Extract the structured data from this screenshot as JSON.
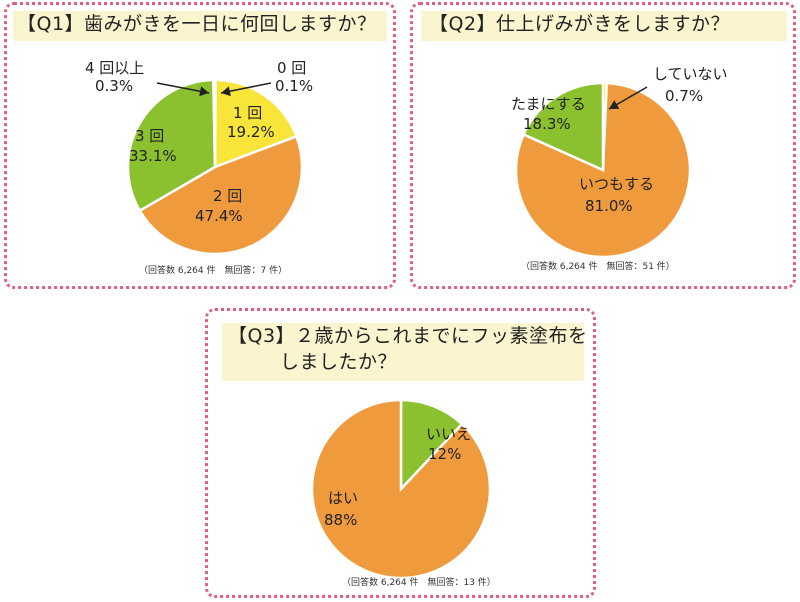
{
  "chart_data": [
    {
      "type": "pie",
      "title": "【Q1】歯みがきを一日に何回しますか？",
      "note": "（回答数 6,264 件　無回答：7 件）",
      "slices": [
        {
          "name": "0 回",
          "value": 0.1,
          "label": "0.1%",
          "color": "#f5a623"
        },
        {
          "name": "1 回",
          "value": 19.2,
          "label": "19.2%",
          "color": "#f9e43a"
        },
        {
          "name": "2 回",
          "value": 47.4,
          "label": "47.4%",
          "color": "#f09a3e"
        },
        {
          "name": "3 回",
          "value": 33.1,
          "label": "33.1%",
          "color": "#8bc02e"
        },
        {
          "name": "4 回以上",
          "value": 0.3,
          "label": "0.3%",
          "color": "#6fa82a"
        }
      ]
    },
    {
      "type": "pie",
      "title": "【Q2】仕上げみがきをしますか？",
      "note": "（回答数 6,264 件　無回答：51 件）",
      "slices": [
        {
          "name": "していない",
          "value": 0.7,
          "label": "0.7%",
          "color": "#f9e43a"
        },
        {
          "name": "いつもする",
          "value": 81.0,
          "label": "81.0%",
          "color": "#f09a3e"
        },
        {
          "name": "たまにする",
          "value": 18.3,
          "label": "18.3%",
          "color": "#8bc02e"
        }
      ]
    },
    {
      "type": "pie",
      "title_line1": "【Q3】２歳からこれまでにフッ素塗布を",
      "title_line2": "しましたか？",
      "note": "（回答数 6,264 件　無回答：13 件）",
      "slices": [
        {
          "name": "いいえ",
          "value": 12,
          "label": "12%",
          "color": "#8bc02e"
        },
        {
          "name": "はい",
          "value": 88,
          "label": "88%",
          "color": "#f09a3e"
        }
      ]
    }
  ]
}
